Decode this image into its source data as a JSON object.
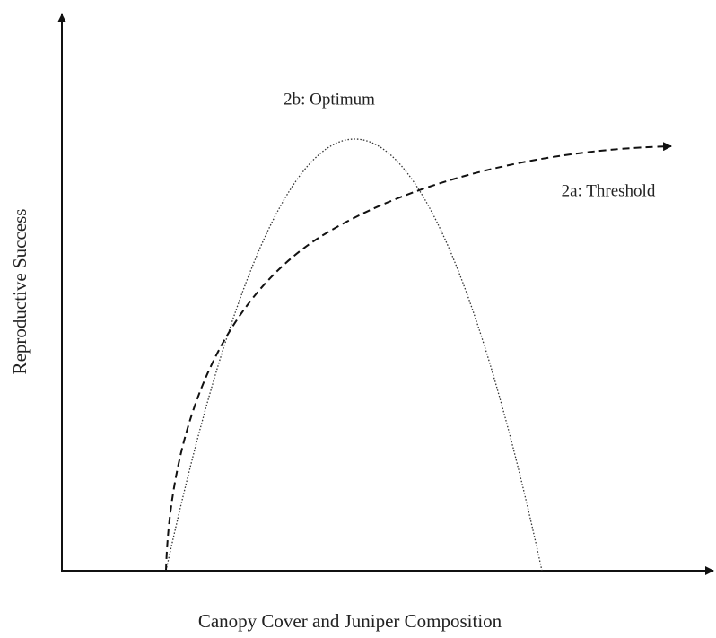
{
  "x_axis_label": "Canopy Cover and Juniper Composition",
  "y_axis_label": "Reproductive Success",
  "curves": [
    {
      "label": "2b: Optimum"
    },
    {
      "label": "2a: Threshold"
    }
  ]
}
